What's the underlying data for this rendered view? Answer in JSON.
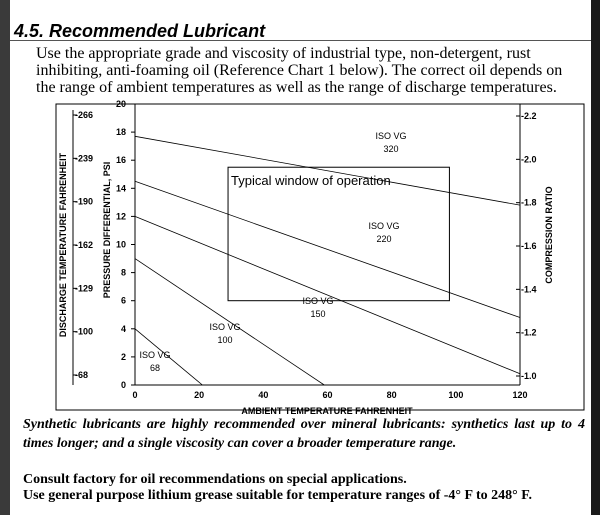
{
  "section": {
    "title": "4.5. Recommended Lubricant",
    "intro": "Use the appropriate grade and viscosity of industrial type, non-detergent, rust inhibiting, anti-foaming oil (Reference Chart 1 below). The correct oil depends on the range of ambient temperatures as well as the range of discharge temperatures."
  },
  "chart_data": {
    "type": "line",
    "xlabel": "AMBIENT TEMPERATURE FAHRENHEIT",
    "x_ticks": [
      "0",
      "20",
      "40",
      "60",
      "80",
      "100",
      "120"
    ],
    "xlim": [
      0,
      120
    ],
    "ylabel": "PRESSURE DIFFERENTIAL, PSI",
    "y_ticks": [
      "0",
      "2",
      "4",
      "6",
      "8",
      "10",
      "12",
      "14",
      "16",
      "18",
      "20"
    ],
    "ylim": [
      0,
      20
    ],
    "left_axis2_label": "DISCHARGE TEMPERATURE FAHRENHEIT",
    "left_axis2_ticks": [
      "-68",
      "-100",
      "-129",
      "-162",
      "-190",
      "-239",
      "-266"
    ],
    "right_axis_label": "COMPRESSION RATIO",
    "right_axis_ticks": [
      "-1.0",
      "-1.2",
      "-1.4",
      "-1.6",
      "-1.8",
      "-2.0",
      "-2.2"
    ],
    "window_label": "Typical window of operation",
    "window": {
      "x": [
        29,
        98
      ],
      "y": [
        6,
        15.5
      ]
    },
    "grid": false,
    "series": [
      {
        "name": "ISO VG 68",
        "label_line1": "ISO VG",
        "label_line2": "68",
        "x": [
          0,
          21
        ],
        "y": [
          4,
          0
        ]
      },
      {
        "name": "ISO VG 100",
        "label_line1": "ISO VG",
        "label_line2": "100",
        "x": [
          0,
          59
        ],
        "y": [
          9,
          0
        ]
      },
      {
        "name": "ISO VG 150",
        "label_line1": "ISO VG",
        "label_line2": "150",
        "x": [
          0,
          120
        ],
        "y": [
          12,
          0.8
        ]
      },
      {
        "name": "ISO VG 220",
        "label_line1": "ISO VG",
        "label_line2": "220",
        "x": [
          0,
          120
        ],
        "y": [
          14.5,
          4.8
        ]
      },
      {
        "name": "ISO VG 320",
        "label_line1": "ISO VG",
        "label_line2": "320",
        "x": [
          0,
          120
        ],
        "y": [
          17.7,
          12.8
        ]
      }
    ]
  },
  "notes": {
    "synthetic": "Synthetic lubricants are highly recommended over mineral lubricants: synthetics last up to 4 times longer; and a single viscosity can cover a broader temperature range.",
    "consult": "Consult factory for oil recommendations on special applications.",
    "grease": "Use general purpose lithium grease suitable for temperature ranges of -4° F to 248° F."
  },
  "colors": {
    "page": "#ffffff",
    "frame": "#000000",
    "ink": "#000000"
  }
}
